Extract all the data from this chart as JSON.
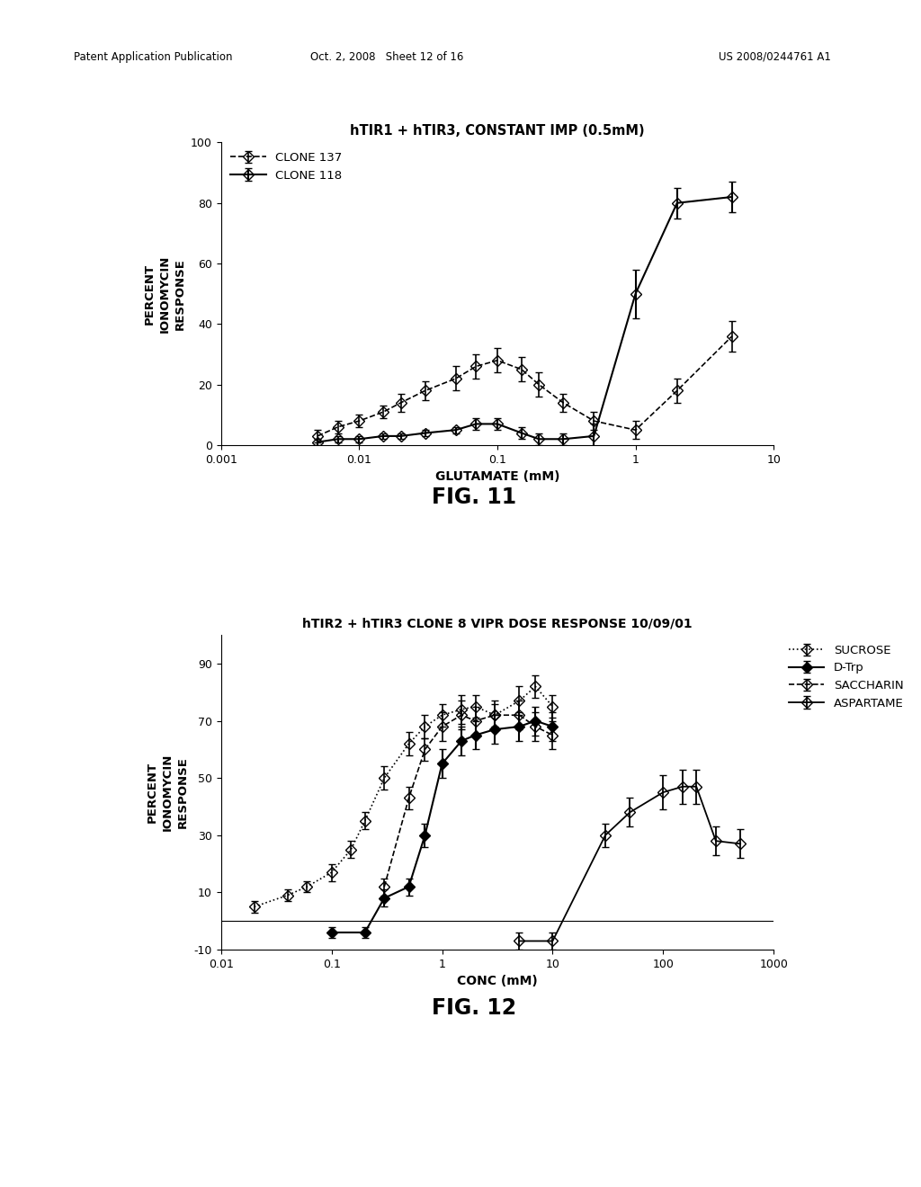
{
  "page_header_left": "Patent Application Publication",
  "page_header_mid": "Oct. 2, 2008   Sheet 12 of 16",
  "page_header_right": "US 2008/0244761 A1",
  "fig1": {
    "title": "hTIR1 + hTIR3, CONSTANT IMP (0.5mM)",
    "xlabel": "GLUTAMATE (mM)",
    "ylabel": "PERCENT\nIONOMYCIN\nRESPONSE",
    "fig_label": "FIG. 11",
    "xlim": [
      0.001,
      10
    ],
    "ylim": [
      0,
      100
    ],
    "yticks": [
      0,
      20,
      40,
      60,
      80,
      100
    ],
    "xticks_log": [
      0.001,
      0.01,
      0.1,
      1,
      10
    ],
    "xtick_labels": [
      "0.001",
      "0.01",
      "0.1",
      "1",
      "10"
    ],
    "clone137": {
      "x": [
        0.005,
        0.007,
        0.01,
        0.015,
        0.02,
        0.03,
        0.05,
        0.07,
        0.1,
        0.15,
        0.2,
        0.3,
        0.5,
        1.0,
        2.0,
        5.0
      ],
      "y": [
        3,
        6,
        8,
        11,
        14,
        18,
        22,
        26,
        28,
        25,
        20,
        14,
        8,
        5,
        18,
        36
      ],
      "yerr": [
        2,
        2,
        2,
        2,
        3,
        3,
        4,
        4,
        4,
        4,
        4,
        3,
        3,
        3,
        4,
        5
      ],
      "label": "CLONE 137",
      "linestyle": "--"
    },
    "clone118": {
      "x": [
        0.005,
        0.007,
        0.01,
        0.015,
        0.02,
        0.03,
        0.05,
        0.07,
        0.1,
        0.15,
        0.2,
        0.3,
        0.5,
        1.0,
        2.0,
        5.0
      ],
      "y": [
        1,
        2,
        2,
        3,
        3,
        4,
        5,
        7,
        7,
        4,
        2,
        2,
        3,
        50,
        80,
        82
      ],
      "yerr": [
        1,
        1,
        1,
        1,
        1,
        1,
        1,
        2,
        2,
        2,
        2,
        2,
        4,
        8,
        5,
        5
      ],
      "label": "CLONE 118",
      "linestyle": "-"
    }
  },
  "fig2": {
    "title": "hTIR2 + hTIR3 CLONE 8 VIPR DOSE RESPONSE 10/09/01",
    "xlabel": "CONC (mM)",
    "ylabel": "PERCENT\nIONOMYCIN\nRESPONSE",
    "fig_label": "FIG. 12",
    "xlim": [
      0.01,
      1000
    ],
    "ylim": [
      -10,
      100
    ],
    "yticks": [
      -10,
      10,
      30,
      50,
      70,
      90
    ],
    "xticks_log": [
      0.01,
      0.1,
      1,
      10,
      100,
      1000
    ],
    "xtick_labels": [
      "0.01",
      "0.1",
      "1",
      "10",
      "100",
      "1000"
    ],
    "sucrose": {
      "x": [
        0.02,
        0.04,
        0.06,
        0.1,
        0.15,
        0.2,
        0.3,
        0.5,
        0.7,
        1.0,
        1.5,
        2.0,
        3.0,
        5.0,
        7.0,
        10.0
      ],
      "y": [
        5,
        9,
        12,
        17,
        25,
        35,
        50,
        62,
        68,
        72,
        74,
        75,
        72,
        77,
        82,
        75
      ],
      "yerr": [
        2,
        2,
        2,
        3,
        3,
        3,
        4,
        4,
        4,
        4,
        5,
        4,
        4,
        5,
        4,
        4
      ],
      "label": "SUCROSE",
      "linestyle": ":"
    },
    "dtrp": {
      "x": [
        0.1,
        0.2,
        0.3,
        0.5,
        0.7,
        1.0,
        1.5,
        2.0,
        3.0,
        5.0,
        7.0,
        10.0
      ],
      "y": [
        -4,
        -4,
        8,
        12,
        30,
        55,
        63,
        65,
        67,
        68,
        70,
        68
      ],
      "yerr": [
        2,
        2,
        3,
        3,
        4,
        5,
        5,
        5,
        5,
        5,
        5,
        5
      ],
      "label": "D-Trp",
      "linestyle": "-",
      "filled": true
    },
    "saccharin": {
      "x": [
        0.3,
        0.5,
        0.7,
        1.0,
        1.5,
        2.0,
        3.0,
        5.0,
        7.0,
        10.0
      ],
      "y": [
        12,
        43,
        60,
        68,
        72,
        70,
        72,
        72,
        68,
        65
      ],
      "yerr": [
        3,
        4,
        4,
        5,
        5,
        5,
        5,
        5,
        5,
        5
      ],
      "label": "SACCHARIN",
      "linestyle": "--"
    },
    "aspartame": {
      "x": [
        5.0,
        10.0,
        30.0,
        50.0,
        100.0,
        150.0,
        200.0,
        300.0,
        500.0
      ],
      "y": [
        -7,
        -7,
        30,
        38,
        45,
        47,
        47,
        28,
        27
      ],
      "yerr": [
        3,
        3,
        4,
        5,
        6,
        6,
        6,
        5,
        5
      ],
      "label": "ASPARTAME",
      "linestyle": "-"
    }
  }
}
